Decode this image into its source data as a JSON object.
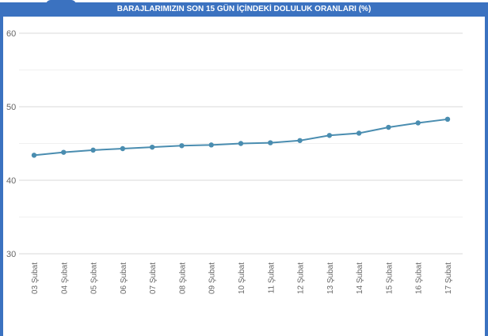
{
  "chart_data": {
    "type": "line",
    "title": "BARAJLARIMIZIN SON 15 GÜN İÇİNDEKİ DOLULUK ORANLARI (%)",
    "categories": [
      "03 Şubat",
      "04 Şubat",
      "05 Şubat",
      "06 Şubat",
      "07 Şubat",
      "08 Şubat",
      "09 Şubat",
      "10 Şubat",
      "11 Şubat",
      "12 Şubat",
      "13 Şubat",
      "14 Şubat",
      "15 Şubat",
      "16 Şubat",
      "17 Şubat"
    ],
    "values": [
      43.4,
      43.8,
      44.1,
      44.3,
      44.5,
      44.7,
      44.8,
      45.0,
      45.1,
      45.4,
      46.1,
      46.4,
      47.2,
      47.8,
      48.3
    ],
    "yticks": [
      "30",
      "40",
      "50",
      "60"
    ],
    "ylim": [
      30,
      60
    ],
    "grid": true,
    "colors": {
      "line": "#4a8db0",
      "frame": "#3b72c0"
    }
  }
}
